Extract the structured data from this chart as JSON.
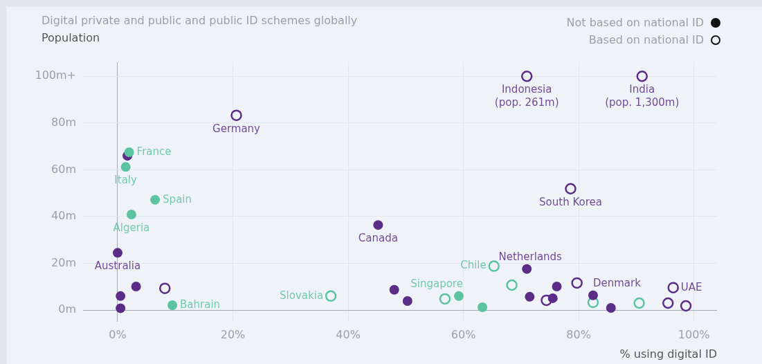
{
  "chart_data": {
    "type": "scatter",
    "title": "Digital private and public and public ID schemes globally",
    "ylabel": "Population",
    "xlabel": "% using digital ID",
    "xlim": [
      -6,
      104
    ],
    "ylim": [
      -5,
      106
    ],
    "xticks": [
      {
        "value": 0,
        "label": "0%"
      },
      {
        "value": 20,
        "label": "20%"
      },
      {
        "value": 40,
        "label": "40%"
      },
      {
        "value": 60,
        "label": "60%"
      },
      {
        "value": 80,
        "label": "80%"
      },
      {
        "value": 100,
        "label": "100%"
      }
    ],
    "yticks": [
      {
        "value": 0,
        "label": "0m"
      },
      {
        "value": 20,
        "label": "20m"
      },
      {
        "value": 40,
        "label": "40m"
      },
      {
        "value": 60,
        "label": "60m"
      },
      {
        "value": 80,
        "label": "80m"
      },
      {
        "value": 100,
        "label": "100m+"
      }
    ],
    "grid": true,
    "marker": "circle",
    "series": [
      {
        "x": [
          1.7,
          0,
          3.2,
          0.5,
          0.5,
          45.2,
          48,
          50.3,
          71,
          71.5,
          76.2,
          75.5,
          82.5,
          85.6,
          2,
          1.4,
          6.5,
          2.4,
          9.5,
          59.2,
          63.3
        ],
        "values": [
          66,
          24.5,
          10.1,
          6,
          0.8,
          36.4,
          8.7,
          3.9,
          17.6,
          5.7,
          10.1,
          5.1,
          6.3,
          0.9,
          67.5,
          61.2,
          47.2,
          40.9,
          2.1,
          6,
          1.2
        ],
        "colors": [
          "#5b2d86",
          "#5b2d86",
          "#5b2d86",
          "#5b2d86",
          "#5b2d86",
          "#5b2d86",
          "#5b2d86",
          "#5b2d86",
          "#5b2d86",
          "#5b2d86",
          "#5b2d86",
          "#5b2d86",
          "#5b2d86",
          "#5b2d86",
          "#5cc3a0",
          "#5cc3a0",
          "#5cc3a0",
          "#5cc3a0",
          "#5cc3a0",
          "#5cc3a0",
          "#5cc3a0"
        ]
      },
      {
        "x": [
          20.6,
          71,
          91,
          78.6,
          8.2,
          74.4,
          79.7,
          96.4,
          95.5,
          98.6,
          37,
          65.3,
          56.8,
          68.4,
          82.5,
          90.5
        ],
        "values": [
          83.3,
          100,
          100,
          51.9,
          9.3,
          4.2,
          11.6,
          9.6,
          3,
          1.8,
          6,
          18.8,
          4.8,
          10.7,
          3.3,
          3
        ],
        "colors": [
          "#5b2d86",
          "#5b2d86",
          "#5b2d86",
          "#5b2d86",
          "#5b2d86",
          "#5b2d86",
          "#5b2d86",
          "#5b2d86",
          "#5b2d86",
          "#5b2d86",
          "#5cc3a0",
          "#5cc3a0",
          "#5cc3a0",
          "#5cc3a0",
          "#5cc3a0",
          "#5cc3a0"
        ]
      }
    ],
    "annotations": [
      "Not based on national ID",
      "Based on national ID",
      {
        "text": "Germany",
        "x": 20.6,
        "y": 83.3
      },
      {
        "text": "Indonesia\n(pop. 261m)",
        "x": 71,
        "y": 100
      },
      {
        "text": "India\n(pop. 1,300m)",
        "x": 91,
        "y": 100
      },
      {
        "text": "South Korea",
        "x": 78.6,
        "y": 51.9
      },
      {
        "text": "Canada",
        "x": 45.2,
        "y": 36.4
      },
      {
        "text": "Australia",
        "x": 0,
        "y": 24.5
      },
      {
        "text": "Italy",
        "x": 1.4,
        "y": 61.2
      },
      {
        "text": "Algeria",
        "x": 2.4,
        "y": 40.9
      },
      {
        "text": "France",
        "x": 2,
        "y": 67.5
      },
      {
        "text": "Spain",
        "x": 6.5,
        "y": 47.2
      },
      {
        "text": "Bahrain",
        "x": 9.5,
        "y": 2.1
      },
      {
        "text": "UAE",
        "x": 96.4,
        "y": 9.6
      },
      {
        "text": "Denmark",
        "x": 82.5,
        "y": 6.3
      },
      {
        "text": "Chile",
        "x": 65.3,
        "y": 18.8
      },
      {
        "text": "Slovakia",
        "x": 37,
        "y": 6
      },
      {
        "text": "Netherlands",
        "x": 71,
        "y": 17.6
      },
      {
        "text": "Singapore",
        "x": 59.2,
        "y": 6
      }
    ]
  }
}
